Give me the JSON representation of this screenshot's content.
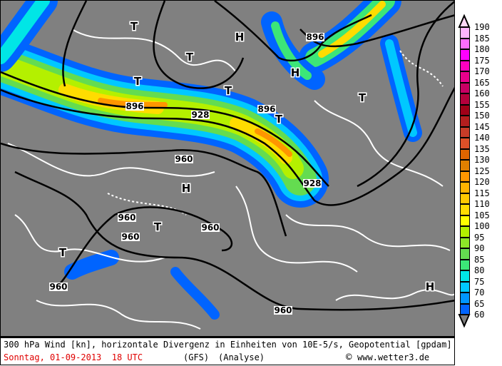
{
  "map": {
    "highs": [
      "H",
      "H",
      "H",
      "H"
    ],
    "lows": [
      "T",
      "T",
      "T",
      "T",
      "T",
      "T",
      "T",
      "T"
    ],
    "contour_labels": [
      "896",
      "896",
      "896",
      "928",
      "928",
      "960",
      "960",
      "960",
      "960",
      "960",
      "960"
    ],
    "colors": {
      "background": "#808080",
      "contour": "#000000",
      "divergence": "#ffffff"
    }
  },
  "legend": {
    "labels": [
      "190",
      "185",
      "180",
      "175",
      "170",
      "165",
      "160",
      "155",
      "150",
      "145",
      "140",
      "135",
      "130",
      "125",
      "120",
      "115",
      "110",
      "105",
      "100",
      "95",
      "90",
      "85",
      "80",
      "75",
      "70",
      "65",
      "60"
    ],
    "colors": [
      "#ffb4ff",
      "#ff6cff",
      "#ff00ff",
      "#ff00c0",
      "#e8008c",
      "#c80064",
      "#b4003c",
      "#a00018",
      "#b41e1e",
      "#c83c28",
      "#dc5028",
      "#e06400",
      "#e08000",
      "#ff9600",
      "#ffb400",
      "#ffc800",
      "#ffdc00",
      "#ffff00",
      "#b4f000",
      "#8ce628",
      "#64dc50",
      "#3ce678",
      "#00e6e6",
      "#00c8ff",
      "#0096ff",
      "#0064ff"
    ],
    "top_arrow_color": "#ffd8f8",
    "bottom_arrow_color": "#808080"
  },
  "caption": {
    "line1": "300 hPa Wind [kn], horizontale Divergenz in Einheiten von 10E-5/s, Geopotential [gpdam]",
    "date": "Sonntag, 01-09-2013  18 UTC",
    "model": "(GFS)",
    "run": "(Analyse)",
    "copyright": "©",
    "site": "www.wetter3.de"
  }
}
